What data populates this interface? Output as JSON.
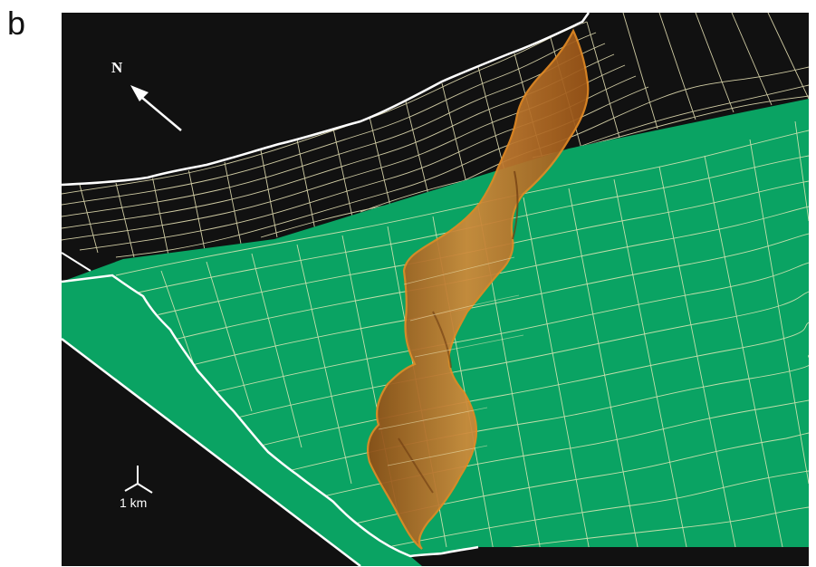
{
  "panel": {
    "label": "b"
  },
  "compass": {
    "label": "N"
  },
  "scale": {
    "label": "1 km"
  },
  "colors": {
    "background": "#111111",
    "lower_surface": "#0aa363",
    "mesh": "#f2edbe",
    "fault_fill": "#b86b22",
    "fault_edge": "#e38a24",
    "outline": "#ffffff"
  },
  "layers": [
    "upper-surface-mesh",
    "lower-surface",
    "lower-surface-mesh",
    "fault-plane"
  ]
}
